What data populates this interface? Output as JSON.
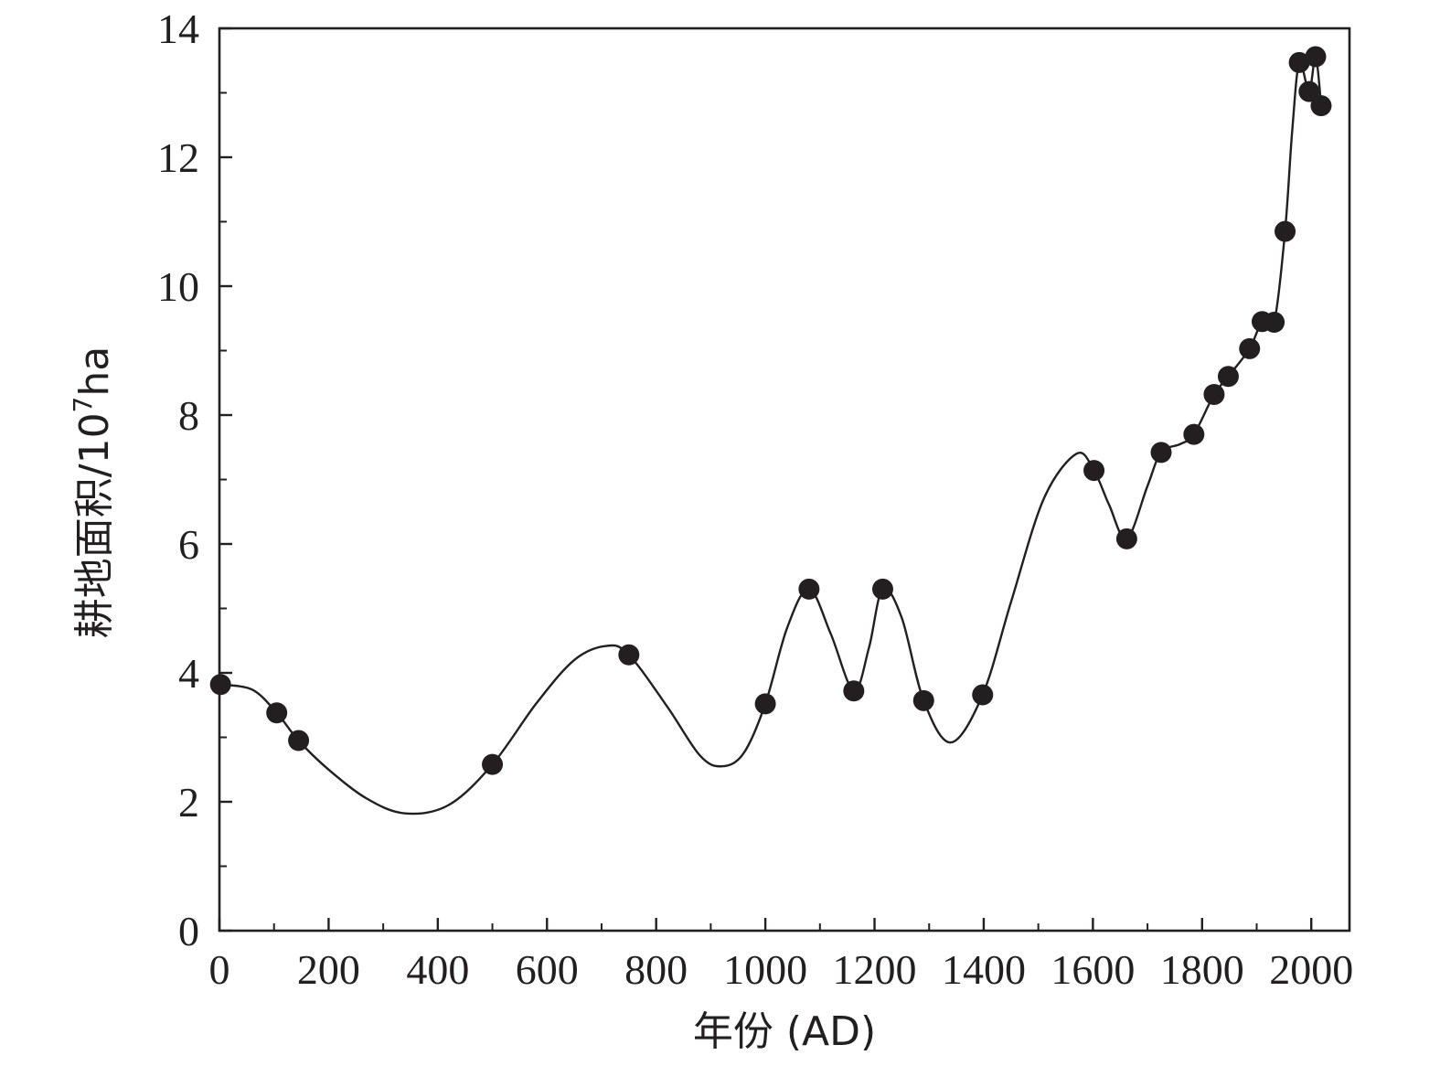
{
  "chart_data": {
    "type": "line",
    "xlabel": "年份 (AD)",
    "ylabel": "耕地面积/10⁷ha",
    "ylabel_parts": {
      "main": "耕地面积/10",
      "sup": "7",
      "unit": "ha"
    },
    "xlim": [
      0,
      2070
    ],
    "ylim": [
      0,
      14
    ],
    "x_ticks": [
      0,
      200,
      400,
      600,
      800,
      1000,
      1200,
      1400,
      1600,
      1800,
      2000
    ],
    "x_tick_labels": [
      "0",
      "200",
      "400",
      "600",
      "800",
      "1000",
      "1200",
      "1400",
      "1600",
      "1800",
      "2000"
    ],
    "y_ticks": [
      0,
      2,
      4,
      6,
      8,
      10,
      12,
      14
    ],
    "y_tick_labels": [
      "0",
      "2",
      "4",
      "6",
      "8",
      "10",
      "12",
      "14"
    ],
    "grid": false,
    "series": [
      {
        "style": "points",
        "color": "#231f20",
        "points": [
          [
            2,
            3.82
          ],
          [
            105,
            3.38
          ],
          [
            145,
            2.95
          ],
          [
            500,
            2.58
          ],
          [
            750,
            4.28
          ],
          [
            1000,
            3.52
          ],
          [
            1080,
            5.3
          ],
          [
            1162,
            3.72
          ],
          [
            1215,
            5.3
          ],
          [
            1290,
            3.57
          ],
          [
            1398,
            3.66
          ],
          [
            1602,
            7.14
          ],
          [
            1662,
            6.08
          ],
          [
            1725,
            7.42
          ],
          [
            1785,
            7.7
          ],
          [
            1822,
            8.32
          ],
          [
            1848,
            8.6
          ],
          [
            1887,
            9.03
          ],
          [
            1910,
            9.45
          ],
          [
            1932,
            9.44
          ],
          [
            1952,
            10.85
          ],
          [
            1978,
            13.47
          ],
          [
            1996,
            13.02
          ],
          [
            2008,
            13.56
          ],
          [
            2018,
            12.8
          ]
        ]
      },
      {
        "style": "smooth-line",
        "color": "#231f20",
        "points": [
          [
            0,
            3.82
          ],
          [
            60,
            3.74
          ],
          [
            105,
            3.38
          ],
          [
            145,
            2.95
          ],
          [
            200,
            2.5
          ],
          [
            270,
            2.05
          ],
          [
            340,
            1.82
          ],
          [
            420,
            1.95
          ],
          [
            500,
            2.58
          ],
          [
            580,
            3.52
          ],
          [
            650,
            4.2
          ],
          [
            710,
            4.42
          ],
          [
            750,
            4.28
          ],
          [
            820,
            3.48
          ],
          [
            880,
            2.72
          ],
          [
            920,
            2.55
          ],
          [
            960,
            2.75
          ],
          [
            1000,
            3.52
          ],
          [
            1040,
            4.7
          ],
          [
            1080,
            5.3
          ],
          [
            1120,
            4.6
          ],
          [
            1162,
            3.72
          ],
          [
            1190,
            4.4
          ],
          [
            1215,
            5.3
          ],
          [
            1250,
            4.85
          ],
          [
            1290,
            3.57
          ],
          [
            1340,
            2.92
          ],
          [
            1398,
            3.66
          ],
          [
            1450,
            5.1
          ],
          [
            1510,
            6.7
          ],
          [
            1570,
            7.4
          ],
          [
            1602,
            7.14
          ],
          [
            1630,
            6.6
          ],
          [
            1662,
            6.08
          ],
          [
            1700,
            6.9
          ],
          [
            1725,
            7.42
          ],
          [
            1760,
            7.55
          ],
          [
            1785,
            7.7
          ],
          [
            1822,
            8.32
          ],
          [
            1848,
            8.6
          ],
          [
            1887,
            9.03
          ],
          [
            1910,
            9.45
          ],
          [
            1932,
            9.44
          ],
          [
            1952,
            10.85
          ],
          [
            1965,
            12.4
          ],
          [
            1978,
            13.47
          ],
          [
            1996,
            13.02
          ],
          [
            2008,
            13.56
          ],
          [
            2018,
            12.8
          ]
        ]
      }
    ]
  }
}
